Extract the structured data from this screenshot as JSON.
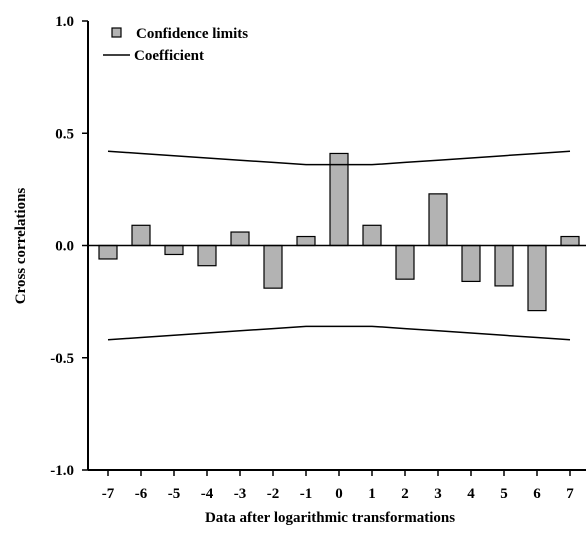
{
  "chart_data": {
    "type": "bar",
    "xlabel": "Data after logarithmic transformations",
    "ylabel": "Cross correlations",
    "ylim": [
      -1.0,
      1.0
    ],
    "yticks": [
      "-1.0",
      "-0.5",
      "0.0",
      "0.5",
      "1.0"
    ],
    "ytick_values": [
      -1.0,
      -0.5,
      0.0,
      0.5,
      1.0
    ],
    "categories": [
      "-7",
      "-6",
      "-5",
      "-4",
      "-3",
      "-2",
      "-1",
      "0",
      "1",
      "2",
      "3",
      "4",
      "5",
      "6",
      "7"
    ],
    "series": [
      {
        "name": "Confidence limits",
        "kind": "bar",
        "values": [
          -0.06,
          0.09,
          -0.04,
          -0.09,
          0.06,
          -0.19,
          0.04,
          0.41,
          0.09,
          -0.15,
          0.23,
          -0.16,
          -0.18,
          -0.29,
          0.04
        ]
      },
      {
        "name": "Coefficient",
        "kind": "line",
        "upper": [
          0.42,
          0.41,
          0.4,
          0.39,
          0.38,
          0.37,
          0.36,
          0.36,
          0.36,
          0.37,
          0.38,
          0.39,
          0.4,
          0.41,
          0.42
        ],
        "lower": [
          -0.42,
          -0.41,
          -0.4,
          -0.39,
          -0.38,
          -0.37,
          -0.36,
          -0.36,
          -0.36,
          -0.37,
          -0.38,
          -0.39,
          -0.4,
          -0.41,
          -0.42
        ]
      }
    ],
    "legend_position": "top-left",
    "grid": false,
    "colors": {
      "bar_fill": "#b3b3b3",
      "stroke": "#000000"
    }
  }
}
